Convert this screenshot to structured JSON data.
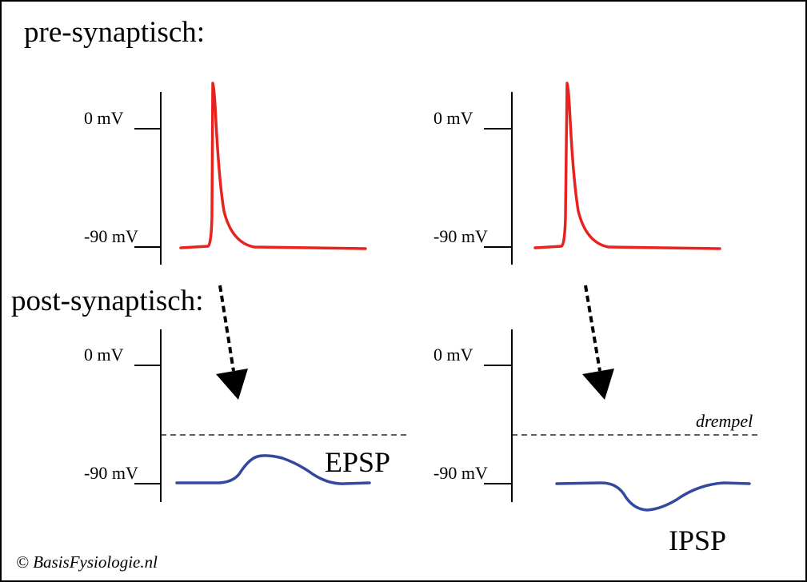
{
  "headings": {
    "pre": "pre-synaptisch:",
    "post": "post-synaptisch:"
  },
  "axis_labels": {
    "zero": "0 mV",
    "rest": "-90 mV"
  },
  "wave_labels": {
    "epsp": "EPSP",
    "ipsp": "IPSP"
  },
  "threshold_label": "drempel",
  "copyright": "© BasisFysiologie.nl",
  "colors": {
    "action_potential": "#e8231f",
    "postsynaptic": "#3448a0",
    "axes": "#000000"
  },
  "icons": [
    "dotted-arrow-down-icon"
  ]
}
